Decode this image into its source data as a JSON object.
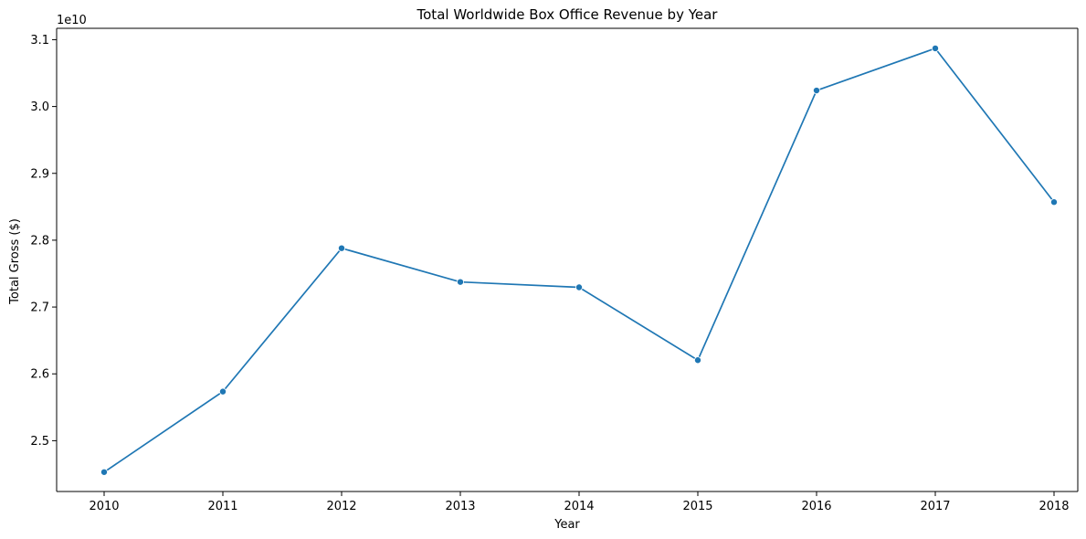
{
  "chart_data": {
    "type": "line",
    "title": "Total Worldwide Box Office Revenue by Year",
    "xlabel": "Year",
    "ylabel": "Total Gross ($)",
    "y_offset_label": "1e10",
    "x": [
      2010,
      2011,
      2012,
      2013,
      2014,
      2015,
      2016,
      2017,
      2018
    ],
    "series": [
      {
        "values": [
          24530000000,
          25735000000,
          27880000000,
          27375000000,
          27295000000,
          26205000000,
          30240000000,
          30870000000,
          28570000000
        ],
        "color": "#1f77b4"
      }
    ],
    "xlim": [
      2009.6,
      2018.2
    ],
    "ylim": [
      24240000000,
      31170000000
    ],
    "xticks": [
      "2010",
      "2011",
      "2012",
      "2013",
      "2014",
      "2015",
      "2016",
      "2017",
      "2018"
    ],
    "yticks": [
      2.5,
      2.6,
      2.7,
      2.8,
      2.9,
      3.0,
      3.1
    ],
    "ytick_labels": [
      "2.5",
      "2.6",
      "2.7",
      "2.8",
      "2.9",
      "3.0",
      "3.1"
    ],
    "grid": false,
    "markers": "circle"
  }
}
